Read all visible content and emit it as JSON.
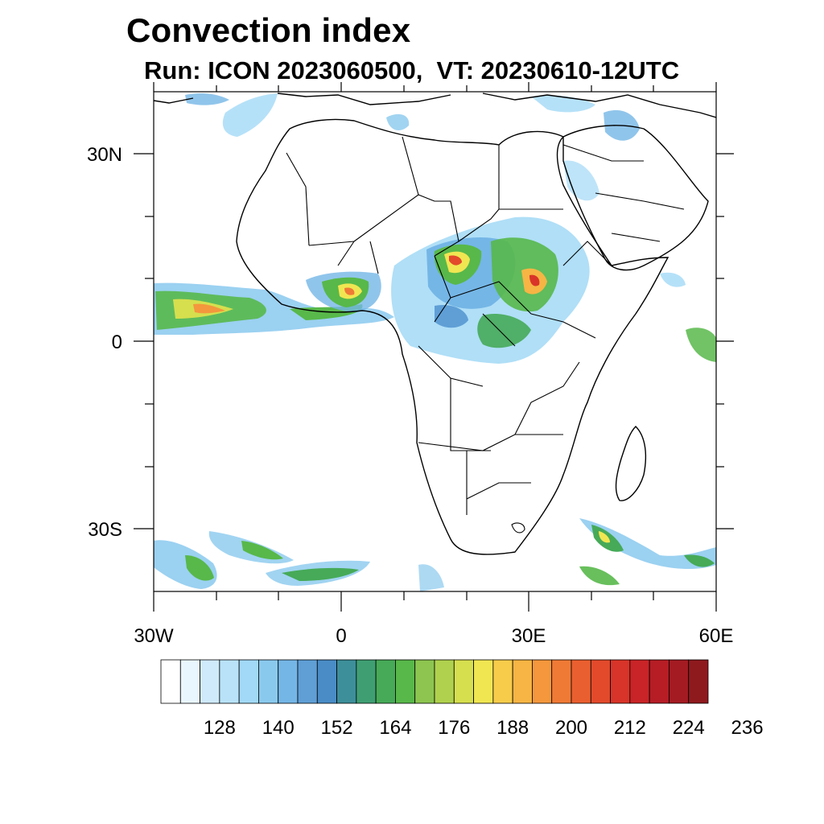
{
  "title": "Convection index",
  "subtitle": "Run: ICON 2023060500,  VT: 20230610-12UTC",
  "map": {
    "lon_range": [
      -30,
      60
    ],
    "lat_range": [
      -40,
      40
    ],
    "x_ticks": [
      "30W",
      "0",
      "30E",
      "60E"
    ],
    "y_ticks": [
      "30N",
      "0",
      "30S"
    ]
  },
  "colorbar": {
    "labels": [
      "128",
      "140",
      "152",
      "164",
      "176",
      "188",
      "200",
      "212",
      "224",
      "236"
    ],
    "colors": [
      "#ffffff",
      "#eaf6fd",
      "#cfeafa",
      "#b9e2f8",
      "#a2d9f6",
      "#8ac9ee",
      "#74b6e6",
      "#5f9fd6",
      "#4a8cc6",
      "#3d8f9a",
      "#3f9f73",
      "#46aa58",
      "#58b84a",
      "#8dc550",
      "#b0d14e",
      "#d6df4e",
      "#f0e652",
      "#f7cc4b",
      "#f6b544",
      "#f4973d",
      "#ef7a36",
      "#ea5f2f",
      "#e24a2b",
      "#d93429",
      "#c92427",
      "#b61d25",
      "#a51b22",
      "#8f1a1e"
    ]
  }
}
